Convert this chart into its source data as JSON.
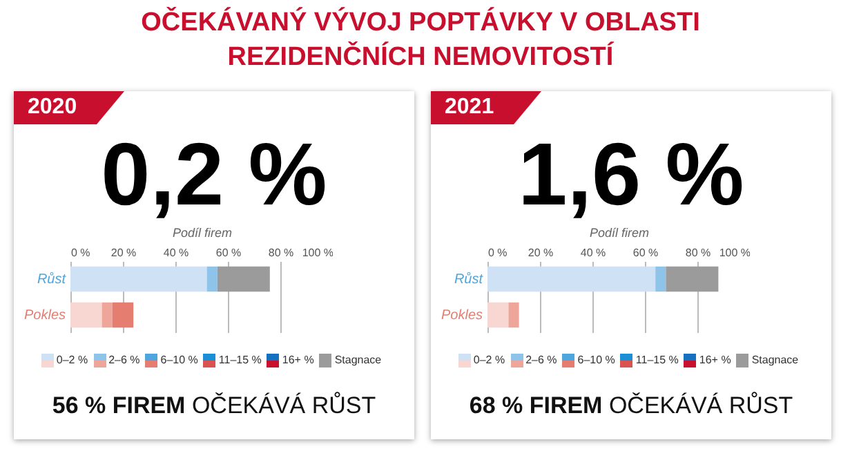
{
  "chart_data": [
    {
      "type": "other",
      "title": "OČEKÁVANÝ VÝVOJ POPTÁVKY V OBLASTI REZIDENČNÍCH NEMOVITOSTÍ"
    },
    {
      "type": "bar",
      "title": "2020",
      "annotations": [
        "0,2 %",
        "56 % FIREM OČEKÁVÁ RŮST"
      ],
      "xlabel": "Podíl firem",
      "categories": [
        "Růst",
        "Pokles"
      ],
      "orientation": "horizontal",
      "stacked": true,
      "grid": "x",
      "legend": "bottom",
      "xlim": [
        0,
        100
      ],
      "xticks": [
        {
          "value": 0,
          "label": "0 %"
        },
        {
          "value": 20,
          "label": "20 %"
        },
        {
          "value": 40,
          "label": "40 %"
        },
        {
          "value": 60,
          "label": "60 %"
        },
        {
          "value": 80,
          "label": "80 %"
        },
        {
          "value": 100,
          "label": "100 %"
        }
      ],
      "series": [
        {
          "name": "0–2 %",
          "colors": [
            "#cfe2f5",
            "#f8d6d1"
          ],
          "values": [
            52,
            12
          ]
        },
        {
          "name": "2–6 %",
          "colors": [
            "#8ec3ea",
            "#eea69b"
          ],
          "values": [
            4,
            4
          ]
        },
        {
          "name": "6–10 %",
          "colors": [
            "#4fa6df",
            "#e57d70"
          ],
          "values": [
            null,
            8
          ]
        },
        {
          "name": "11–15 %",
          "colors": [
            "#1b8fd6",
            "#d9534f"
          ],
          "values": [
            null,
            null
          ]
        },
        {
          "name": "16+ %",
          "colors": [
            "#1670c0",
            "#c8102e"
          ],
          "values": [
            null,
            null
          ]
        },
        {
          "name": "Stagnace",
          "colors": [
            "#9b9b9b",
            "#9b9b9b"
          ],
          "values": [
            20,
            null
          ]
        }
      ]
    },
    {
      "type": "bar",
      "title": "2021",
      "annotations": [
        "1,6 %",
        "68 % FIREM OČEKÁVÁ RŮST"
      ],
      "xlabel": "Podíl firem",
      "categories": [
        "Růst",
        "Pokles"
      ],
      "orientation": "horizontal",
      "stacked": true,
      "grid": "x",
      "legend": "bottom",
      "xlim": [
        0,
        100
      ],
      "xticks": [
        {
          "value": 0,
          "label": "0 %"
        },
        {
          "value": 20,
          "label": "20 %"
        },
        {
          "value": 40,
          "label": "40 %"
        },
        {
          "value": 60,
          "label": "60 %"
        },
        {
          "value": 80,
          "label": "80 %"
        },
        {
          "value": 100,
          "label": "100 %"
        }
      ],
      "series": [
        {
          "name": "0–2 %",
          "colors": [
            "#cfe2f5",
            "#f8d6d1"
          ],
          "values": [
            64,
            8
          ]
        },
        {
          "name": "2–6 %",
          "colors": [
            "#8ec3ea",
            "#eea69b"
          ],
          "values": [
            4,
            4
          ]
        },
        {
          "name": "6–10 %",
          "colors": [
            "#4fa6df",
            "#e57d70"
          ],
          "values": [
            null,
            null
          ]
        },
        {
          "name": "11–15 %",
          "colors": [
            "#1b8fd6",
            "#d9534f"
          ],
          "values": [
            null,
            null
          ]
        },
        {
          "name": "16+ %",
          "colors": [
            "#1670c0",
            "#c8102e"
          ],
          "values": [
            null,
            null
          ]
        },
        {
          "name": "Stagnace",
          "colors": [
            "#9b9b9b",
            "#9b9b9b"
          ],
          "values": [
            20,
            null
          ]
        }
      ]
    }
  ]
}
